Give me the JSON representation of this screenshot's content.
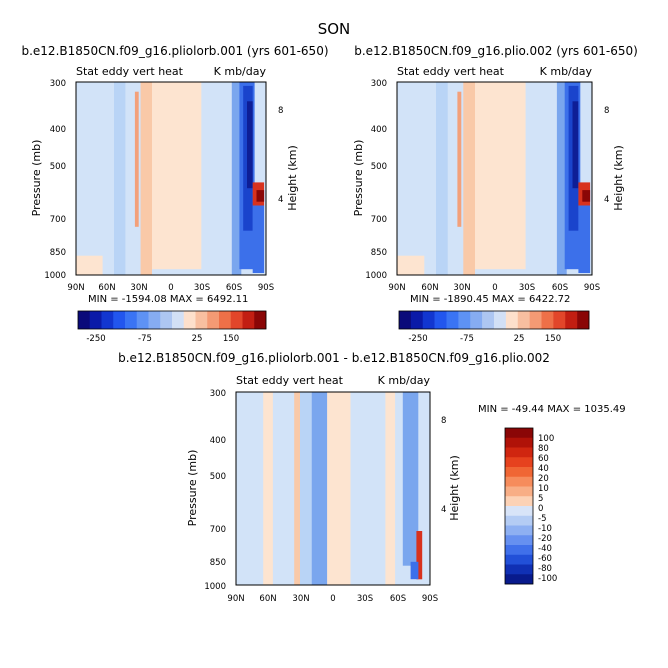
{
  "figure_title": "SON",
  "chart_data": [
    {
      "type": "heatmap",
      "title": "b.e12.B1850CN.f09_g16.pliolorb.001 (yrs 601-650)",
      "left_subtitle": "Stat eddy vert heat",
      "right_subtitle": "K mb/day",
      "ylabel": "Pressure (mb)",
      "y2label": "Height (km)",
      "xticks": [
        "90N",
        "60N",
        "30N",
        "0",
        "30S",
        "60S",
        "90S"
      ],
      "yticks": [
        "300",
        "400",
        "500",
        "700",
        "850",
        "1000"
      ],
      "y2ticks": [
        "8",
        "4"
      ],
      "stats": "MIN = -1594.08    MAX = 6492.11",
      "colorbar_labels": [
        "-250",
        "-75",
        "25",
        "150"
      ],
      "colors": [
        "#0a0a7a",
        "#0a1aa8",
        "#1236d0",
        "#2256ee",
        "#3a74f4",
        "#5e92f4",
        "#86acf2",
        "#adc6f2",
        "#d2e0f6",
        "#fde0cc",
        "#f8bfa0",
        "#f49a74",
        "#ee7048",
        "#e2462a",
        "#c21e12",
        "#8a0606"
      ]
    },
    {
      "type": "heatmap",
      "title": "b.e12.B1850CN.f09_g16.plio.002 (yrs 601-650)",
      "left_subtitle": "Stat eddy vert heat",
      "right_subtitle": "K mb/day",
      "ylabel": "Pressure (mb)",
      "y2label": "Height (km)",
      "xticks": [
        "90N",
        "60N",
        "30N",
        "0",
        "30S",
        "60S",
        "90S"
      ],
      "yticks": [
        "300",
        "400",
        "500",
        "700",
        "850",
        "1000"
      ],
      "y2ticks": [
        "8",
        "4"
      ],
      "stats": "MIN = -1890.45    MAX = 6422.72",
      "colorbar_labels": [
        "-250",
        "-75",
        "25",
        "150"
      ],
      "colors": [
        "#0a0a7a",
        "#0a1aa8",
        "#1236d0",
        "#2256ee",
        "#3a74f4",
        "#5e92f4",
        "#86acf2",
        "#adc6f2",
        "#d2e0f6",
        "#fde0cc",
        "#f8bfa0",
        "#f49a74",
        "#ee7048",
        "#e2462a",
        "#c21e12",
        "#8a0606"
      ]
    },
    {
      "type": "heatmap",
      "title": "b.e12.B1850CN.f09_g16.pliolorb.001 - b.e12.B1850CN.f09_g16.plio.002",
      "left_subtitle": "Stat eddy vert heat",
      "right_subtitle": "K mb/day",
      "ylabel": "Pressure (mb)",
      "y2label": "Height (km)",
      "xticks": [
        "90N",
        "60N",
        "30N",
        "0",
        "30S",
        "60S",
        "90S"
      ],
      "yticks": [
        "300",
        "400",
        "500",
        "700",
        "850",
        "1000"
      ],
      "y2ticks": [
        "8",
        "4"
      ],
      "stats": "MIN = -49.44    MAX = 1035.49",
      "colorbar_labels": [
        "100",
        "80",
        "60",
        "40",
        "20",
        "10",
        "5",
        "0",
        "-5",
        "-10",
        "-20",
        "-40",
        "-60",
        "-80",
        "-100"
      ],
      "colors": [
        "#8a0606",
        "#b01208",
        "#d02610",
        "#e6421e",
        "#f06634",
        "#f68c5c",
        "#f8ae86",
        "#fcd2b6",
        "#d8e4f8",
        "#b4ccf4",
        "#8eb0f2",
        "#6690f0",
        "#4070ea",
        "#2250d8",
        "#1030b4",
        "#081a8c"
      ]
    }
  ]
}
